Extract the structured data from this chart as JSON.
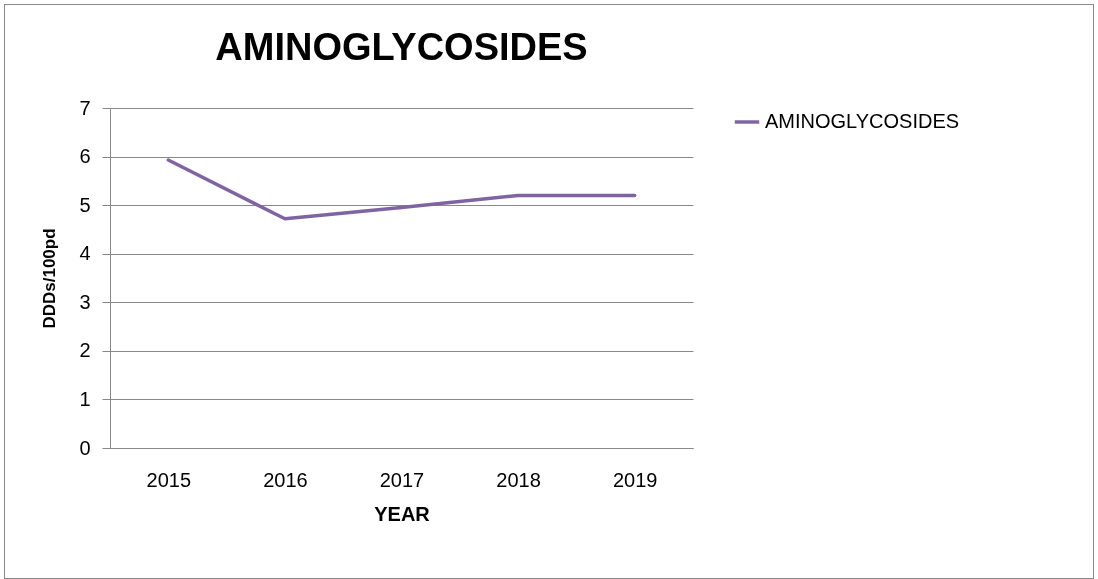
{
  "chart_data": {
    "type": "line",
    "title": "AMINOGLYCOSIDES",
    "xlabel": "YEAR",
    "ylabel": "DDDs/100pd",
    "categories": [
      "2015",
      "2016",
      "2017",
      "2018",
      "2019"
    ],
    "series": [
      {
        "name": "AMINOGLYCOSIDES",
        "color": "#8064a2",
        "values": [
          5.93,
          4.72,
          4.95,
          5.2,
          5.2
        ]
      }
    ],
    "ylim": [
      0,
      7
    ],
    "yticks": [
      0,
      1,
      2,
      3,
      4,
      5,
      6,
      7
    ],
    "grid": "y",
    "legend": "right",
    "marker": "none"
  }
}
